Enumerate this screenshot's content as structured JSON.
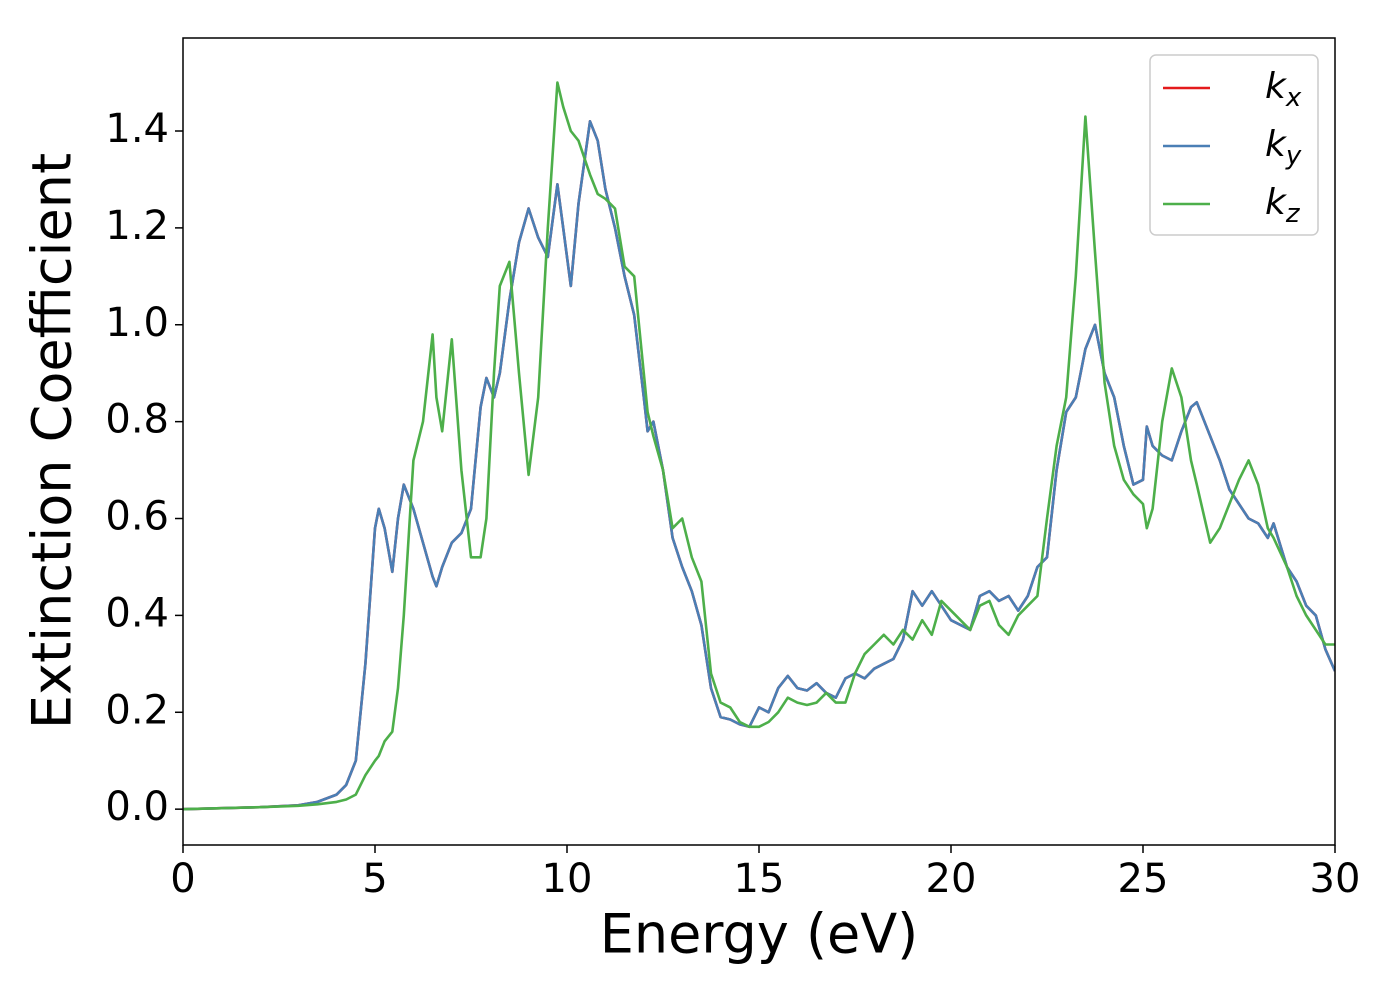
{
  "chart_data": {
    "type": "line",
    "xlabel": "Energy (eV)",
    "ylabel": "Extinction Coefficient",
    "x": [
      0,
      1,
      2,
      3,
      3.5,
      4,
      4.25,
      4.5,
      4.75,
      5,
      5.1,
      5.25,
      5.45,
      5.6,
      5.75,
      6,
      6.25,
      6.5,
      6.6,
      6.75,
      7,
      7.25,
      7.5,
      7.75,
      7.9,
      8.1,
      8.25,
      8.5,
      8.75,
      9,
      9.25,
      9.5,
      9.75,
      9.9,
      10.1,
      10.3,
      10.6,
      10.8,
      11,
      11.25,
      11.5,
      11.75,
      12,
      12.1,
      12.25,
      12.5,
      12.75,
      13,
      13.25,
      13.5,
      13.75,
      14,
      14.25,
      14.5,
      14.75,
      15,
      15.25,
      15.5,
      15.75,
      16,
      16.25,
      16.5,
      16.75,
      17,
      17.25,
      17.5,
      17.75,
      18,
      18.25,
      18.5,
      18.75,
      19,
      19.25,
      19.5,
      19.75,
      20,
      20.5,
      20.75,
      21,
      21.25,
      21.5,
      21.75,
      22,
      22.25,
      22.5,
      22.75,
      23,
      23.25,
      23.5,
      23.75,
      24,
      24.25,
      24.5,
      24.75,
      25,
      25.1,
      25.25,
      25.5,
      25.75,
      26,
      26.25,
      26.4,
      26.75,
      27,
      27.25,
      27.5,
      27.75,
      28,
      28.25,
      28.4,
      28.75,
      29,
      29.25,
      29.5,
      29.75,
      30
    ],
    "series": [
      {
        "name": "kx",
        "color": "#e41a1c",
        "values": [
          0,
          0.002,
          0.004,
          0.008,
          0.015,
          0.03,
          0.05,
          0.1,
          0.3,
          0.58,
          0.62,
          0.58,
          0.49,
          0.6,
          0.67,
          0.62,
          0.55,
          0.48,
          0.46,
          0.5,
          0.55,
          0.57,
          0.62,
          0.83,
          0.89,
          0.85,
          0.9,
          1.05,
          1.17,
          1.24,
          1.18,
          1.14,
          1.29,
          1.2,
          1.08,
          1.25,
          1.42,
          1.38,
          1.28,
          1.2,
          1.1,
          1.02,
          0.85,
          0.78,
          0.8,
          0.7,
          0.56,
          0.5,
          0.45,
          0.38,
          0.25,
          0.19,
          0.185,
          0.175,
          0.17,
          0.21,
          0.2,
          0.25,
          0.275,
          0.25,
          0.245,
          0.26,
          0.24,
          0.23,
          0.27,
          0.28,
          0.27,
          0.29,
          0.3,
          0.31,
          0.35,
          0.45,
          0.42,
          0.45,
          0.42,
          0.39,
          0.37,
          0.44,
          0.45,
          0.43,
          0.44,
          0.41,
          0.44,
          0.5,
          0.52,
          0.7,
          0.82,
          0.85,
          0.95,
          1.0,
          0.9,
          0.85,
          0.75,
          0.67,
          0.68,
          0.79,
          0.75,
          0.73,
          0.72,
          0.78,
          0.83,
          0.84,
          0.77,
          0.72,
          0.66,
          0.63,
          0.6,
          0.59,
          0.56,
          0.59,
          0.5,
          0.47,
          0.42,
          0.4,
          0.33,
          0.285
        ]
      },
      {
        "name": "ky",
        "color": "#4a7fb5",
        "values": [
          0,
          0.002,
          0.004,
          0.008,
          0.015,
          0.03,
          0.05,
          0.1,
          0.3,
          0.58,
          0.62,
          0.58,
          0.49,
          0.6,
          0.67,
          0.62,
          0.55,
          0.48,
          0.46,
          0.5,
          0.55,
          0.57,
          0.62,
          0.83,
          0.89,
          0.85,
          0.9,
          1.05,
          1.17,
          1.24,
          1.18,
          1.14,
          1.29,
          1.2,
          1.08,
          1.25,
          1.42,
          1.38,
          1.28,
          1.2,
          1.1,
          1.02,
          0.85,
          0.78,
          0.8,
          0.7,
          0.56,
          0.5,
          0.45,
          0.38,
          0.25,
          0.19,
          0.185,
          0.175,
          0.17,
          0.21,
          0.2,
          0.25,
          0.275,
          0.25,
          0.245,
          0.26,
          0.24,
          0.23,
          0.27,
          0.28,
          0.27,
          0.29,
          0.3,
          0.31,
          0.35,
          0.45,
          0.42,
          0.45,
          0.42,
          0.39,
          0.37,
          0.44,
          0.45,
          0.43,
          0.44,
          0.41,
          0.44,
          0.5,
          0.52,
          0.7,
          0.82,
          0.85,
          0.95,
          1.0,
          0.9,
          0.85,
          0.75,
          0.67,
          0.68,
          0.79,
          0.75,
          0.73,
          0.72,
          0.78,
          0.83,
          0.84,
          0.77,
          0.72,
          0.66,
          0.63,
          0.6,
          0.59,
          0.56,
          0.59,
          0.5,
          0.47,
          0.42,
          0.4,
          0.33,
          0.285
        ]
      },
      {
        "name": "kz",
        "color": "#4daf4a",
        "values": [
          0,
          0.002,
          0.004,
          0.007,
          0.01,
          0.015,
          0.02,
          0.03,
          0.07,
          0.1,
          0.11,
          0.14,
          0.16,
          0.25,
          0.4,
          0.72,
          0.8,
          0.98,
          0.85,
          0.78,
          0.97,
          0.7,
          0.52,
          0.52,
          0.6,
          0.9,
          1.08,
          1.13,
          0.9,
          0.69,
          0.85,
          1.2,
          1.5,
          1.45,
          1.4,
          1.38,
          1.31,
          1.27,
          1.26,
          1.24,
          1.12,
          1.1,
          0.9,
          0.82,
          0.77,
          0.7,
          0.58,
          0.6,
          0.52,
          0.47,
          0.28,
          0.22,
          0.21,
          0.18,
          0.17,
          0.17,
          0.18,
          0.2,
          0.23,
          0.22,
          0.215,
          0.22,
          0.24,
          0.22,
          0.22,
          0.28,
          0.32,
          0.34,
          0.36,
          0.34,
          0.37,
          0.35,
          0.39,
          0.36,
          0.43,
          0.41,
          0.37,
          0.42,
          0.43,
          0.38,
          0.36,
          0.4,
          0.42,
          0.44,
          0.6,
          0.75,
          0.85,
          1.1,
          1.43,
          1.15,
          0.88,
          0.75,
          0.68,
          0.65,
          0.63,
          0.58,
          0.62,
          0.8,
          0.91,
          0.85,
          0.72,
          0.67,
          0.55,
          0.58,
          0.63,
          0.68,
          0.72,
          0.67,
          0.58,
          0.56,
          0.5,
          0.44,
          0.4,
          0.37,
          0.34,
          0.34
        ]
      }
    ],
    "xlim": [
      0,
      30
    ],
    "xticks": [
      0,
      5,
      10,
      15,
      20,
      25,
      30
    ],
    "ylim": [
      -0.074,
      1.592
    ],
    "yticks": [
      {
        "value": 0,
        "label": "0.0"
      },
      {
        "value": 0.2,
        "label": "0.2"
      },
      {
        "value": 0.4,
        "label": "0.4"
      },
      {
        "value": 0.6,
        "label": "0.6"
      },
      {
        "value": 0.8,
        "label": "0.8"
      },
      {
        "value": 1.0,
        "label": "1.0"
      },
      {
        "value": 1.2,
        "label": "1.2"
      },
      {
        "value": 1.4,
        "label": "1.4"
      }
    ],
    "grid": false,
    "legend": "upper right"
  }
}
